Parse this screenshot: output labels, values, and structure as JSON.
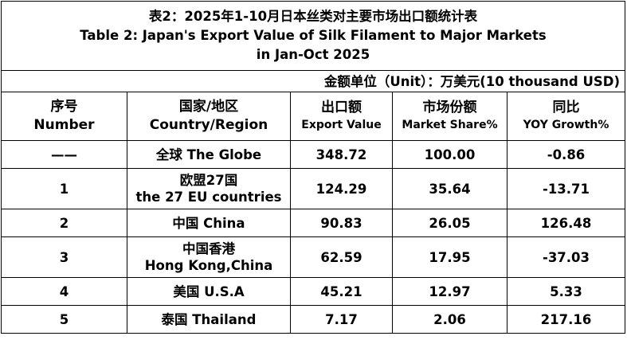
{
  "title": {
    "cn": "表2：2025年1-10月日本丝类对主要市场出口额统计表",
    "en_line1": "Table 2: Japan's Export Value of Silk Filament to Major Markets",
    "en_line2": "in Jan-Oct 2025"
  },
  "unit": "金额单位（Unit）：万美元(10 thousand USD)",
  "headers": {
    "number_cn": "序号",
    "number_en": "Number",
    "country_cn": "国家/地区",
    "country_en": "Country/Region",
    "value_cn": "出口额",
    "value_en": "Export Value",
    "share_cn": "市场份额",
    "share_en": "Market Share%",
    "yoy_cn": "同比",
    "yoy_en": "YOY Growth%"
  },
  "rows": [
    {
      "number": "——",
      "country_line1": "全球  The Globe",
      "country_line2": "",
      "value": "348.72",
      "share": "100.00",
      "yoy": "-0.86"
    },
    {
      "number": "1",
      "country_line1": "欧盟27国",
      "country_line2": "the 27 EU countries",
      "value": "124.29",
      "share": "35.64",
      "yoy": "-13.71"
    },
    {
      "number": "2",
      "country_line1": "中国 China",
      "country_line2": "",
      "value": "90.83",
      "share": "26.05",
      "yoy": "126.48"
    },
    {
      "number": "3",
      "country_line1": "中国香港",
      "country_line2": "Hong Kong,China",
      "value": "62.59",
      "share": "17.95",
      "yoy": "-37.03"
    },
    {
      "number": "4",
      "country_line1": "美国 U.S.A",
      "country_line2": "",
      "value": "45.21",
      "share": "12.97",
      "yoy": "5.33"
    },
    {
      "number": "5",
      "country_line1": "泰国 Thailand",
      "country_line2": "",
      "value": "7.17",
      "share": "2.06",
      "yoy": "217.16"
    }
  ]
}
